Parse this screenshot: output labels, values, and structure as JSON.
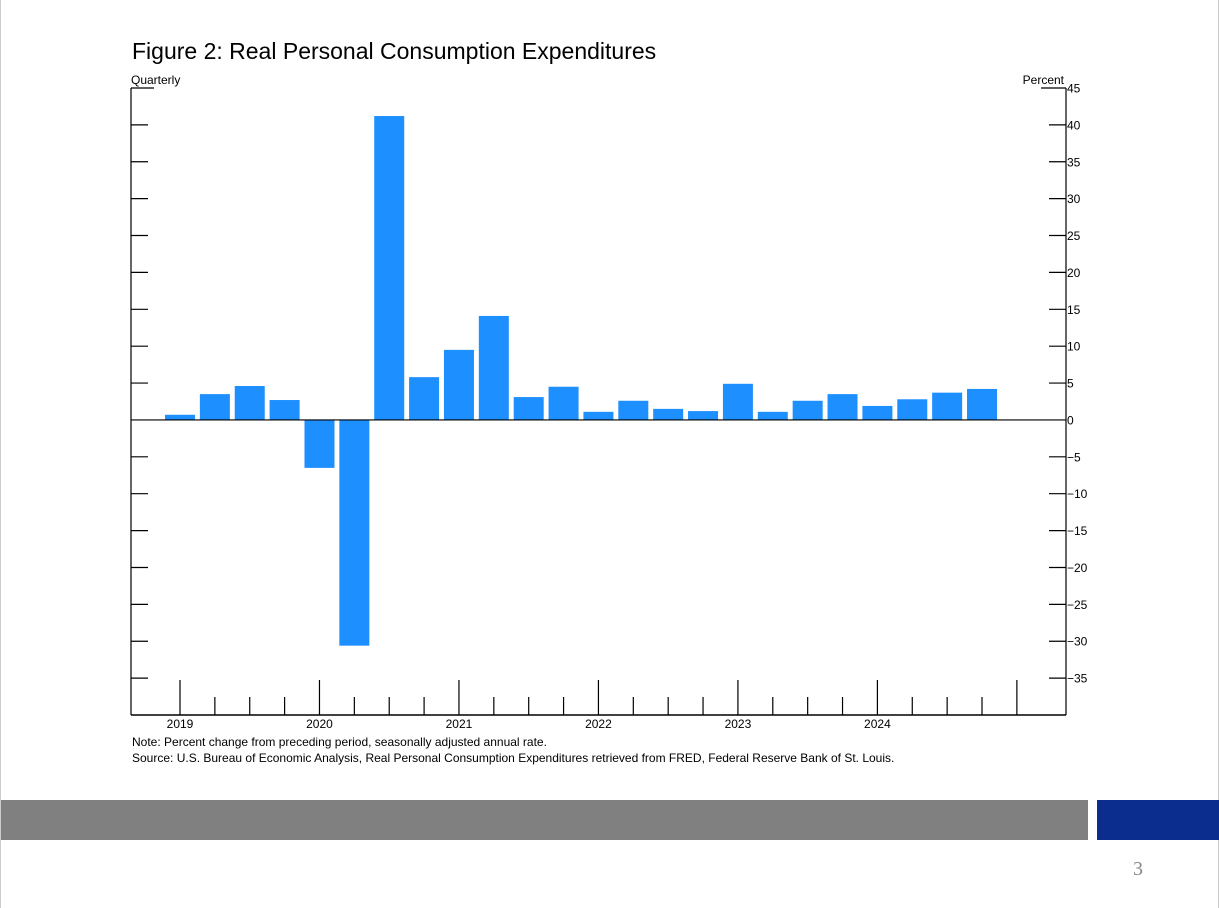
{
  "slide": {
    "page_number": "3"
  },
  "colors": {
    "bar": "#1e8fff",
    "gray_band": "#808080",
    "blue_band": "#0b2e8e"
  },
  "chart_data": {
    "type": "bar",
    "title": "Figure 2: Real Personal Consumption Expenditures",
    "frequency_label": "Quarterly",
    "ylabel": "Percent",
    "ylim": [
      -40,
      45
    ],
    "yticks": [
      45,
      40,
      35,
      30,
      25,
      20,
      15,
      10,
      5,
      0,
      -5,
      -10,
      -15,
      -20,
      -25,
      -30,
      -35
    ],
    "xtick_labels": [
      "2019",
      "2020",
      "2021",
      "2022",
      "2023",
      "2024"
    ],
    "categories": [
      "2019Q1",
      "2019Q2",
      "2019Q3",
      "2019Q4",
      "2020Q1",
      "2020Q2",
      "2020Q3",
      "2020Q4",
      "2021Q1",
      "2021Q2",
      "2021Q3",
      "2021Q4",
      "2022Q1",
      "2022Q2",
      "2022Q3",
      "2022Q4",
      "2023Q1",
      "2023Q2",
      "2023Q3",
      "2023Q4",
      "2024Q1",
      "2024Q2",
      "2024Q3",
      "2024Q4"
    ],
    "values": [
      0.7,
      3.5,
      4.6,
      2.7,
      -6.5,
      -30.6,
      41.2,
      5.8,
      9.5,
      14.1,
      3.1,
      4.5,
      1.1,
      2.6,
      1.5,
      1.2,
      4.9,
      1.1,
      2.6,
      3.5,
      1.9,
      2.8,
      3.7,
      4.2
    ],
    "grid": false,
    "note": "Note: Percent change from preceding period, seasonally adjusted annual rate.",
    "source": "Source: U.S. Bureau of Economic Analysis, Real Personal Consumption Expenditures retrieved from FRED, Federal Reserve Bank of St. Louis."
  }
}
